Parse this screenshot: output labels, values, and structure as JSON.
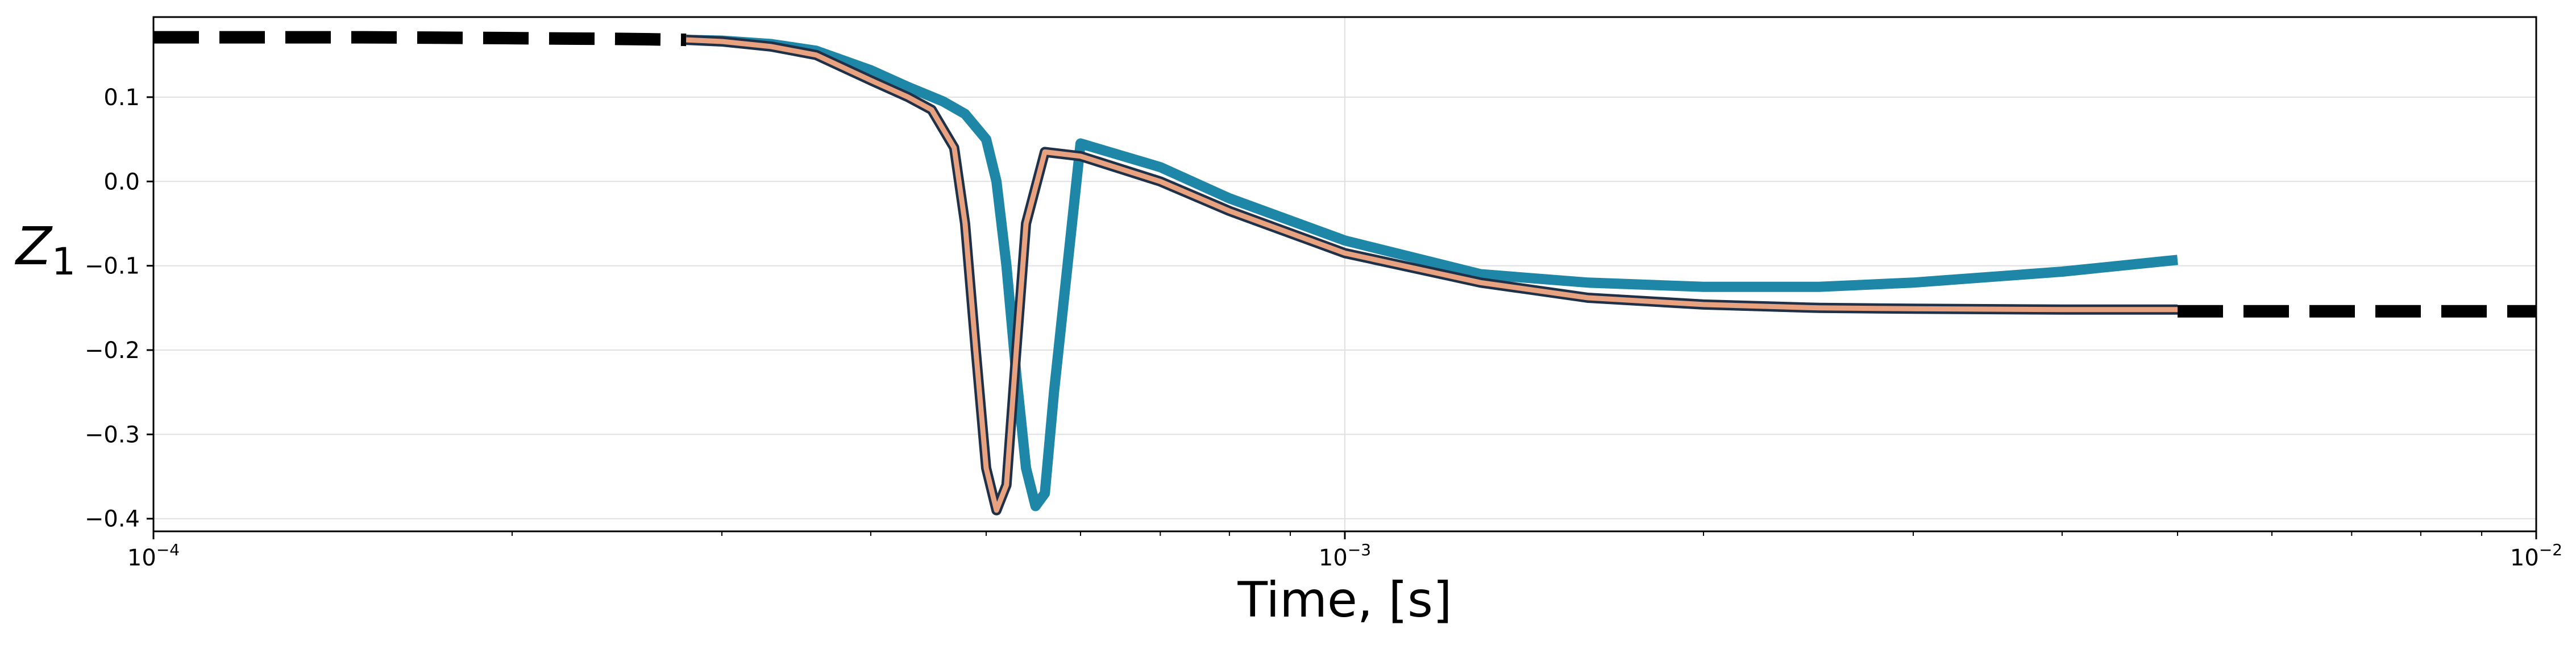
{
  "chart_data": {
    "type": "line",
    "title": "",
    "xlabel": "Time, [s]",
    "ylabel": "Z",
    "ylabel_subscript": "1",
    "x_scale": "log",
    "xlim": [
      0.0001,
      0.01
    ],
    "ylim": [
      -0.415,
      0.195
    ],
    "grid": true,
    "legend": "none",
    "x_ticks": [
      {
        "value": 0.0001,
        "base": "10",
        "exp": "−4"
      },
      {
        "value": 0.001,
        "base": "10",
        "exp": "−3"
      },
      {
        "value": 0.01,
        "base": "10",
        "exp": "−2"
      }
    ],
    "y_ticks": [
      {
        "value": 0.1,
        "label": "0.1"
      },
      {
        "value": 0.0,
        "label": "0.0"
      },
      {
        "value": -0.1,
        "label": "−0.1"
      },
      {
        "value": -0.2,
        "label": "−0.2"
      },
      {
        "value": -0.3,
        "label": "−0.3"
      },
      {
        "value": -0.4,
        "label": "−0.4"
      }
    ],
    "series": [
      {
        "style": "dashed",
        "color": "#000000",
        "x": [
          0.0001,
          0.00015,
          0.0002,
          0.00025,
          0.00028
        ],
        "y": [
          0.171,
          0.171,
          0.17,
          0.169,
          0.168
        ]
      },
      {
        "style": "dashed",
        "color": "#000000",
        "x": [
          0.005,
          0.006,
          0.007,
          0.008,
          0.009,
          0.01
        ],
        "y": [
          -0.154,
          -0.154,
          -0.154,
          -0.154,
          -0.154,
          -0.154
        ]
      },
      {
        "style": "solid",
        "color": "#1e86a6",
        "x": [
          0.00028,
          0.0003,
          0.00033,
          0.00036,
          0.0004,
          0.00043,
          0.00046,
          0.00048,
          0.0005,
          0.00051,
          0.00052,
          0.00053,
          0.00054,
          0.00055,
          0.00056,
          0.00057,
          0.0006,
          0.0007,
          0.0008,
          0.001,
          0.0013,
          0.0016,
          0.002,
          0.0025,
          0.003,
          0.004,
          0.005
        ],
        "y": [
          0.168,
          0.167,
          0.163,
          0.155,
          0.132,
          0.112,
          0.095,
          0.08,
          0.05,
          0.0,
          -0.1,
          -0.23,
          -0.34,
          -0.385,
          -0.37,
          -0.25,
          0.045,
          0.017,
          -0.02,
          -0.07,
          -0.11,
          -0.12,
          -0.125,
          -0.125,
          -0.12,
          -0.107,
          -0.093
        ]
      },
      {
        "style": "solid",
        "color": "#e8a27f",
        "x": [
          0.00028,
          0.0003,
          0.00033,
          0.00036,
          0.0004,
          0.00043,
          0.00045,
          0.00047,
          0.00048,
          0.00049,
          0.0005,
          0.00051,
          0.00052,
          0.00053,
          0.00054,
          0.00056,
          0.0006,
          0.0007,
          0.0008,
          0.001,
          0.0013,
          0.0016,
          0.002,
          0.0025,
          0.003,
          0.004,
          0.005
        ],
        "y": [
          0.168,
          0.166,
          0.16,
          0.15,
          0.12,
          0.1,
          0.085,
          0.04,
          -0.05,
          -0.2,
          -0.34,
          -0.39,
          -0.36,
          -0.2,
          -0.05,
          0.035,
          0.03,
          0.0,
          -0.035,
          -0.085,
          -0.12,
          -0.138,
          -0.146,
          -0.15,
          -0.151,
          -0.152,
          -0.152
        ]
      }
    ]
  }
}
